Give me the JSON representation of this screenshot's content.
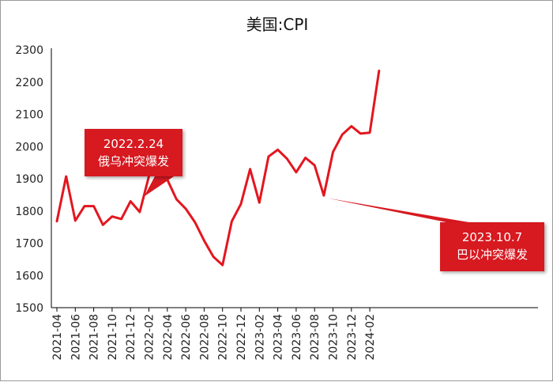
{
  "chart_data": {
    "type": "line",
    "title": "美国:CPI",
    "xlabel": "",
    "ylabel": "",
    "ylim": [
      1500,
      2300
    ],
    "yticks": [
      1500,
      1600,
      1700,
      1800,
      1900,
      2000,
      2100,
      2200,
      2300
    ],
    "xticks": [
      "2021-04",
      "2021-06",
      "2021-08",
      "2021-10",
      "2021-12",
      "2022-02",
      "2022-04",
      "2022-06",
      "2022-08",
      "2022-10",
      "2022-12",
      "2023-02",
      "2023-04",
      "2023-06",
      "2023-08",
      "2023-10",
      "2023-12",
      "2024-02"
    ],
    "x": [
      "2021-04",
      "2021-05",
      "2021-06",
      "2021-07",
      "2021-08",
      "2021-09",
      "2021-10",
      "2021-11",
      "2021-12",
      "2022-01",
      "2022-02",
      "2022-03",
      "2022-04",
      "2022-05",
      "2022-06",
      "2022-07",
      "2022-08",
      "2022-09",
      "2022-10",
      "2022-11",
      "2022-12",
      "2023-01",
      "2023-02",
      "2023-03",
      "2023-04",
      "2023-05",
      "2023-06",
      "2023-07",
      "2023-08",
      "2023-09",
      "2023-10",
      "2023-11",
      "2023-12",
      "2024-01",
      "2024-02",
      "2024-03"
    ],
    "series": [
      {
        "name": "",
        "values": [
          1768,
          1907,
          1770,
          1815,
          1815,
          1757,
          1783,
          1775,
          1830,
          1797,
          1908,
          1937,
          1897,
          1836,
          1807,
          1765,
          1708,
          1658,
          1632,
          1768,
          1822,
          1930,
          1826,
          1969,
          1990,
          1962,
          1920,
          1965,
          1942,
          1848,
          1983,
          2037,
          2063,
          2040,
          2043,
          2235
        ]
      }
    ],
    "grid": false,
    "color": "#e3161f",
    "annotations": [
      {
        "line1": "2022.2.24",
        "line2": "俄乌冲突爆发",
        "x": "2022-02"
      },
      {
        "line1": "2023.10.7",
        "line2": "巴以冲突爆发",
        "x": "2023-09"
      }
    ]
  },
  "colors": {
    "line": "#e3161f",
    "callout_bg": "#d71920",
    "axis": "#000000"
  }
}
